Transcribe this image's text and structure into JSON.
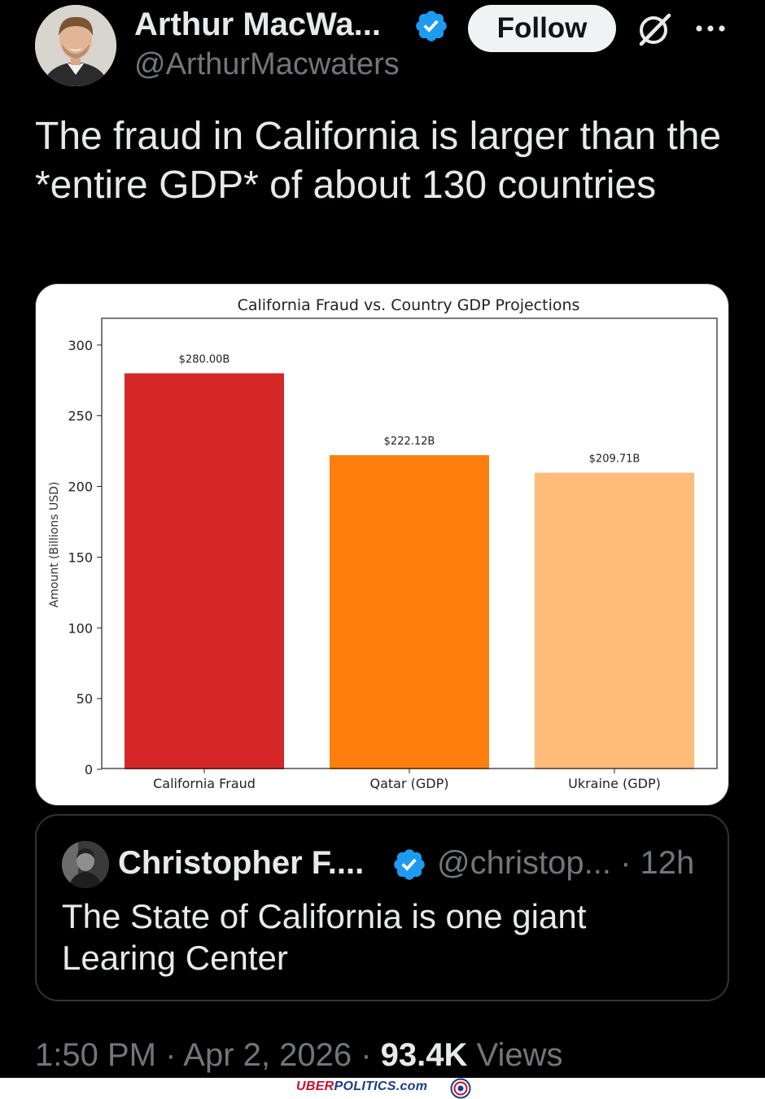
{
  "author": {
    "display_name": "Arthur MacWa...",
    "handle": "@ArthurMacwaters",
    "follow_label": "Follow"
  },
  "tweet": {
    "text": "The fraud in California is larger than the *entire GDP* of about 130 countries"
  },
  "chart_data": {
    "type": "bar",
    "title": "California Fraud vs. Country GDP Projections",
    "xlabel": "",
    "ylabel": "Amount (Billions USD)",
    "categories": [
      "California Fraud",
      "Qatar (GDP)",
      "Ukraine (GDP)"
    ],
    "values": [
      280.0,
      222.12,
      209.71
    ],
    "value_labels": [
      "$280.00B",
      "$222.12B",
      "$209.71B"
    ],
    "colors": [
      "#d62728",
      "#ff7f0e",
      "#ffbb78"
    ],
    "yticks": [
      0,
      50,
      100,
      150,
      200,
      250,
      300
    ],
    "ylim": [
      0,
      320
    ],
    "grid": false,
    "legend": "none"
  },
  "quote": {
    "name": "Christopher F....",
    "handle_time": "@christop... · 12h",
    "text": "The State of California is one giant Learing Center"
  },
  "meta": {
    "time_date": "1:50 PM · Apr 2, 2026 · ",
    "views_count": "93.4K",
    "views_label": " Views"
  },
  "watermark": {
    "part1": "UBER",
    "part2": "POLITICS.com"
  },
  "colors": {
    "background": "#000000",
    "text": "#e7e9ea",
    "muted": "#71767b",
    "verified": "#1d9bf0",
    "border": "#2f3336"
  },
  "icons": {
    "verified": "verified-badge-icon",
    "grok": "grok-icon",
    "more": "more-dots-icon"
  }
}
